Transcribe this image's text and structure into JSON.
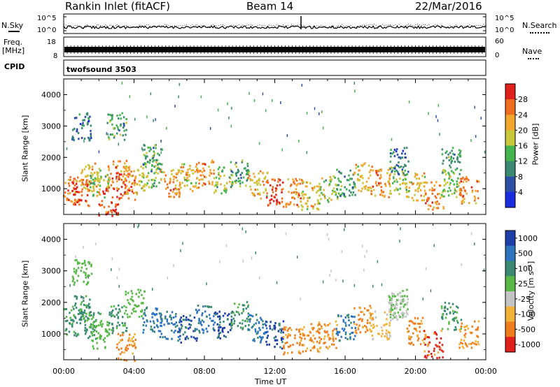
{
  "header": {
    "station": "Rankin Inlet (fitACF)",
    "beam": "Beam 14",
    "date": "22/Mar/2016"
  },
  "top_panels": {
    "nsky_label": "N.Sky",
    "nsearch_label": "N.Search",
    "nsky_ticks": [
      "10^5",
      "10^0"
    ],
    "nsearch_ticks": [
      "10^5",
      "10^0"
    ],
    "freq_label": "Freq.",
    "freq_unit": "[MHz]",
    "freq_ticks": [
      "18",
      "8"
    ],
    "nave_label": "Nave",
    "nave_ticks": [
      "60",
      "0"
    ],
    "cpid_label": "CPID",
    "cpid_value": "twofsound 3503"
  },
  "chart_data": [
    {
      "type": "heatmap",
      "name": "power",
      "ylabel": "Slant Range [km]",
      "yticks": [
        1000,
        2000,
        3000,
        4000
      ],
      "ylim": [
        180,
        4500
      ],
      "colorbar_label": "Power [dB]",
      "colorbar_ticks": [
        4,
        8,
        12,
        16,
        20,
        24,
        28
      ],
      "colorbar_colors": [
        "#1a2be0",
        "#2e4fa8",
        "#3a8a72",
        "#44b44e",
        "#c8c83c",
        "#f2a62e",
        "#ef6d1e",
        "#e0201a"
      ],
      "cells": [
        [
          0.5,
          1050,
          24
        ],
        [
          1.0,
          900,
          28
        ],
        [
          1.5,
          1400,
          20
        ],
        [
          2.0,
          1200,
          16
        ],
        [
          2.5,
          600,
          28
        ],
        [
          3.0,
          1500,
          24
        ],
        [
          3.5,
          1100,
          28
        ],
        [
          4.0,
          1300,
          20
        ],
        [
          5.0,
          1500,
          16
        ],
        [
          6.0,
          1200,
          24
        ],
        [
          7.0,
          1400,
          20
        ],
        [
          8.0,
          1500,
          24
        ],
        [
          9.0,
          1300,
          16
        ],
        [
          10.0,
          1500,
          12
        ],
        [
          11.0,
          1150,
          20
        ],
        [
          12.0,
          950,
          28
        ],
        [
          13.0,
          900,
          24
        ],
        [
          14.0,
          800,
          20
        ],
        [
          15.0,
          1000,
          16
        ],
        [
          16.0,
          1200,
          12
        ],
        [
          17.0,
          1400,
          20
        ],
        [
          18.0,
          1200,
          24
        ],
        [
          19.0,
          1300,
          16
        ],
        [
          20.0,
          1100,
          20
        ],
        [
          21.0,
          800,
          24
        ],
        [
          22.0,
          1200,
          16
        ],
        [
          23.0,
          1000,
          24
        ],
        [
          1.0,
          3000,
          8
        ],
        [
          3.0,
          3000,
          12
        ],
        [
          5.0,
          2000,
          12
        ],
        [
          19.0,
          1900,
          8
        ],
        [
          22.0,
          1900,
          12
        ]
      ]
    },
    {
      "type": "heatmap",
      "name": "velocity",
      "ylabel": "Slant Range [km]",
      "yticks": [
        1000,
        2000,
        3000,
        4000
      ],
      "ylim": [
        180,
        4500
      ],
      "colorbar_label": "Velocity [m s⁻¹]",
      "colorbar_unit_superscript": "-1",
      "colorbar_ticks": [
        "1000",
        "500",
        "100",
        "25",
        "-25",
        "-100",
        "-500",
        "-1000"
      ],
      "colorbar_colors": [
        "#1f3fa8",
        "#2e74c0",
        "#3a8a72",
        "#58b848",
        "#c4c4c4",
        "#f2b23a",
        "#ef7d1e",
        "#e0201a"
      ],
      "cells": [
        [
          0.5,
          1400,
          100
        ],
        [
          1.0,
          1800,
          100
        ],
        [
          1.5,
          1300,
          100
        ],
        [
          2.0,
          1000,
          25
        ],
        [
          3.0,
          1500,
          100
        ],
        [
          3.5,
          600,
          -500
        ],
        [
          5.0,
          1500,
          500
        ],
        [
          6.0,
          1300,
          500
        ],
        [
          7.0,
          1200,
          1000
        ],
        [
          8.0,
          1500,
          500
        ],
        [
          9.0,
          1300,
          1000
        ],
        [
          10.0,
          1600,
          100
        ],
        [
          11.0,
          1200,
          500
        ],
        [
          12.0,
          1000,
          1000
        ],
        [
          13.0,
          800,
          -500
        ],
        [
          14.0,
          900,
          -500
        ],
        [
          15.0,
          1000,
          -500
        ],
        [
          16.0,
          1200,
          500
        ],
        [
          17.0,
          1500,
          -500
        ],
        [
          18.0,
          1300,
          -100
        ],
        [
          19.0,
          2000,
          25
        ],
        [
          20.0,
          1100,
          -500
        ],
        [
          21.0,
          700,
          -1000
        ],
        [
          22.0,
          1600,
          100
        ],
        [
          23.0,
          1000,
          -500
        ],
        [
          1.0,
          3000,
          25
        ],
        [
          4.0,
          2000,
          25
        ],
        [
          19.0,
          1900,
          -25
        ]
      ]
    }
  ],
  "x_axis": {
    "label": "Time UT",
    "ticks": [
      "00:00",
      "04:00",
      "08:00",
      "12:00",
      "16:00",
      "20:00",
      "00:00"
    ],
    "range_hours": [
      0,
      24
    ]
  }
}
